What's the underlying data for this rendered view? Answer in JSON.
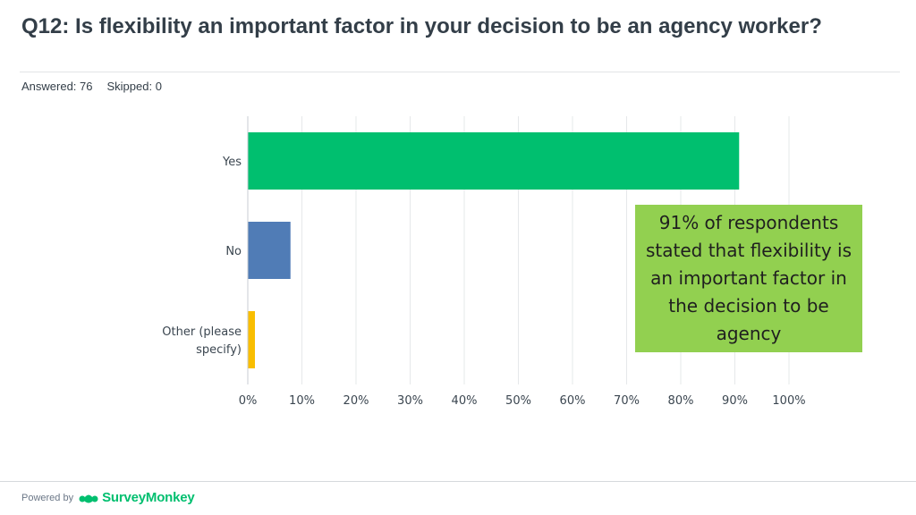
{
  "question": {
    "title": "Q12: Is flexibility an important factor in your decision to be an agency worker?",
    "answered": "Answered: 76",
    "skipped": "Skipped: 0"
  },
  "callout": {
    "text": "91% of respondents stated that flexibility is an important factor in the decision to be agency",
    "color": "#92d050"
  },
  "footer": {
    "powered_by": "Powered by",
    "brand": "SurveyMonkey",
    "brand_color": "#00bf6f"
  },
  "chart_data": {
    "type": "bar",
    "orientation": "horizontal",
    "categories": [
      [
        "Yes"
      ],
      [
        "No"
      ],
      [
        "Other (please",
        "specify)"
      ]
    ],
    "values": [
      90.79,
      7.89,
      1.32
    ],
    "colors": [
      "#00bf6f",
      "#507cb6",
      "#f9be00"
    ],
    "xlim": [
      0,
      100
    ],
    "ticks": [
      "0%",
      "10%",
      "20%",
      "30%",
      "40%",
      "50%",
      "60%",
      "70%",
      "80%",
      "90%",
      "100%"
    ],
    "grid": true
  }
}
